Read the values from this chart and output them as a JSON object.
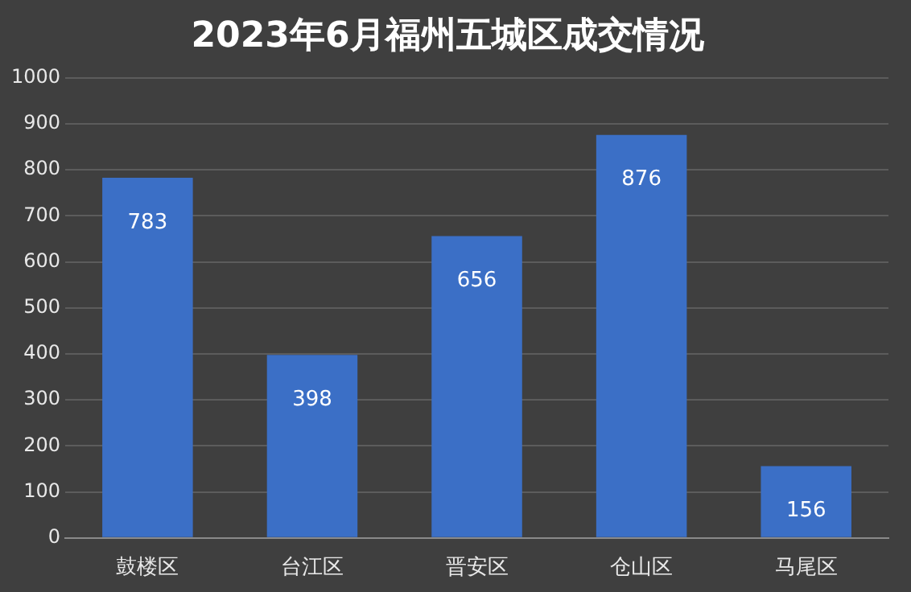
{
  "chart_data": {
    "type": "bar",
    "title": "2023年6月福州五城区成交情况",
    "categories": [
      "鼓楼区",
      "台江区",
      "晋安区",
      "仓山区",
      "马尾区"
    ],
    "values": [
      783,
      398,
      656,
      876,
      156
    ],
    "color": "#3b6fc6",
    "ylim": [
      0,
      1000
    ],
    "yticks": [
      0,
      100,
      200,
      300,
      400,
      500,
      600,
      700,
      800,
      900,
      1000
    ],
    "grid": "y",
    "data_labels": true,
    "legend": false
  }
}
